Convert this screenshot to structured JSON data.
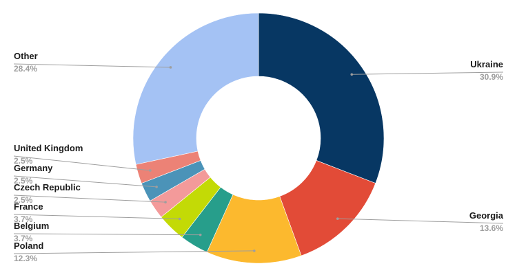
{
  "chart_data": {
    "type": "pie",
    "variant": "donut",
    "title": "",
    "legend": "none",
    "slices": [
      {
        "label": "Ukraine",
        "value": 30.9,
        "display": "30.9%",
        "color": "#073763"
      },
      {
        "label": "Georgia",
        "value": 13.6,
        "display": "13.6%",
        "color": "#e24b37"
      },
      {
        "label": "Poland",
        "value": 12.3,
        "display": "12.3%",
        "color": "#fcb92e"
      },
      {
        "label": "Belgium",
        "value": 3.7,
        "display": "3.7%",
        "color": "#279e8b"
      },
      {
        "label": "France",
        "value": 3.7,
        "display": "3.7%",
        "color": "#c3da06"
      },
      {
        "label": "Czech Republic",
        "value": 2.5,
        "display": "2.5%",
        "color": "#f39a9a"
      },
      {
        "label": "Germany",
        "value": 2.5,
        "display": "2.5%",
        "color": "#4b93b8"
      },
      {
        "label": "United Kingdom",
        "value": 2.5,
        "display": "2.5%",
        "color": "#ec8276"
      },
      {
        "label": "Other",
        "value": 28.4,
        "display": "28.4%",
        "color": "#a4c2f4"
      }
    ]
  }
}
